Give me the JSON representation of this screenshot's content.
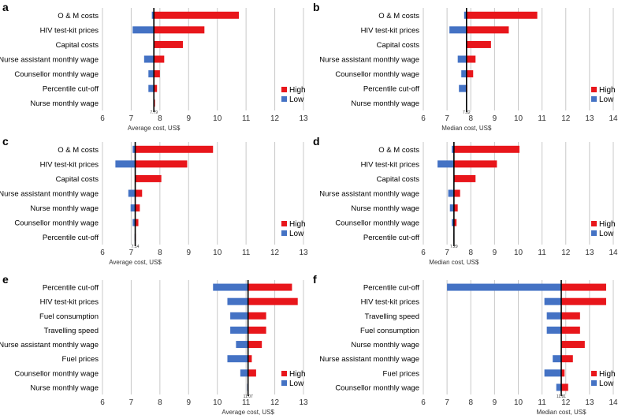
{
  "chart_data": [
    {
      "type": "bar",
      "subtype": "tornado",
      "panel": "a",
      "xlabel": "Average cost, US$",
      "xlim": [
        6,
        13
      ],
      "xticks": [
        6,
        7,
        8,
        9,
        10,
        11,
        12,
        13
      ],
      "base": 7.79,
      "base_label": "7.79",
      "legend": [
        "High",
        "Low"
      ],
      "legend_position": "right",
      "categories": [
        "O & M costs",
        "HIV test-kit prices",
        "Capital costs",
        "Nurse assistant monthly wage",
        "Counsellor monthly wage",
        "Percentile cut-off",
        "Nurse monthly wage"
      ],
      "series": [
        {
          "name": "Low",
          "values": [
            7.72,
            7.05,
            7.79,
            7.45,
            7.6,
            7.6,
            7.77
          ]
        },
        {
          "name": "High",
          "values": [
            10.75,
            9.55,
            8.8,
            8.15,
            8.0,
            7.9,
            7.83
          ]
        }
      ]
    },
    {
      "type": "bar",
      "subtype": "tornado",
      "panel": "b",
      "xlabel": "Median cost, US$",
      "xlim": [
        6,
        14
      ],
      "xticks": [
        6,
        7,
        8,
        9,
        10,
        11,
        12,
        13,
        14
      ],
      "base": 7.82,
      "base_label": "7.82",
      "legend": [
        "High",
        "Low"
      ],
      "legend_position": "right",
      "categories": [
        "O & M costs",
        "HIV test-kit prices",
        "Capital costs",
        "Nurse assistant monthly wage",
        "Counsellor monthly wage",
        "Percentile cut-off",
        "Nurse monthly wage"
      ],
      "series": [
        {
          "name": "Low",
          "values": [
            7.72,
            7.1,
            7.82,
            7.45,
            7.6,
            7.5,
            7.8
          ]
        },
        {
          "name": "High",
          "values": [
            10.8,
            9.6,
            8.85,
            8.2,
            8.1,
            7.85,
            7.84
          ]
        }
      ]
    },
    {
      "type": "bar",
      "subtype": "tornado",
      "panel": "c",
      "xlabel": "Average cost, US$",
      "xlim": [
        6,
        13
      ],
      "xticks": [
        6,
        7,
        8,
        9,
        10,
        11,
        12,
        13
      ],
      "base": 7.14,
      "base_label": "7.14",
      "legend": [
        "High",
        "Low"
      ],
      "legend_position": "right",
      "categories": [
        "O & M costs",
        "HIV test-kit prices",
        "Capital costs",
        "Nurse assistant monthly wage",
        "Nurse monthly wage",
        "Counsellor monthly wage",
        "Percentile cut-off"
      ],
      "series": [
        {
          "name": "Low",
          "values": [
            7.05,
            6.45,
            7.14,
            6.9,
            6.98,
            7.05,
            7.12
          ]
        },
        {
          "name": "High",
          "values": [
            9.85,
            8.95,
            8.05,
            7.38,
            7.3,
            7.25,
            7.16
          ]
        }
      ]
    },
    {
      "type": "bar",
      "subtype": "tornado",
      "panel": "d",
      "xlabel": "Median cost, US$",
      "xlim": [
        6,
        14
      ],
      "xticks": [
        6,
        7,
        8,
        9,
        10,
        11,
        12,
        13,
        14
      ],
      "base": 7.29,
      "base_label": "7.29",
      "legend": [
        "High",
        "Low"
      ],
      "legend_position": "right",
      "categories": [
        "O & M costs",
        "HIV test-kit prices",
        "Capital costs",
        "Nurse assistant monthly wage",
        "Nurse monthly wage",
        "Counsellor monthly wage",
        "Percentile cut-off"
      ],
      "series": [
        {
          "name": "Low",
          "values": [
            7.2,
            6.6,
            7.29,
            7.05,
            7.12,
            7.2,
            7.27
          ]
        },
        {
          "name": "High",
          "values": [
            10.05,
            9.1,
            8.2,
            7.55,
            7.45,
            7.4,
            7.31
          ]
        }
      ]
    },
    {
      "type": "bar",
      "subtype": "tornado",
      "panel": "e",
      "xlabel": "Average cost, US$",
      "xlim": [
        6,
        13
      ],
      "xticks": [
        6,
        7,
        8,
        9,
        10,
        11,
        12,
        13
      ],
      "base": 11.07,
      "base_label": "11.07",
      "legend": [
        "High",
        "Low"
      ],
      "legend_position": "right",
      "categories": [
        "Percentile cut-off",
        "HIV test-kit prices",
        "Fuel consumption",
        "Travelling speed",
        "Nurse assistant monthly wage",
        "Fuel prices",
        "Counsellor monthly wage",
        "Nurse monthly wage"
      ],
      "series": [
        {
          "name": "Low",
          "values": [
            9.85,
            10.35,
            10.45,
            10.45,
            10.65,
            10.35,
            10.8,
            11.04
          ]
        },
        {
          "name": "High",
          "values": [
            12.6,
            12.8,
            11.7,
            11.7,
            11.55,
            11.2,
            11.35,
            11.09
          ]
        }
      ]
    },
    {
      "type": "bar",
      "subtype": "tornado",
      "panel": "f",
      "xlabel": "Median cost, US$",
      "xlim": [
        6,
        14
      ],
      "xticks": [
        6,
        7,
        8,
        9,
        10,
        11,
        12,
        13,
        14
      ],
      "base": 11.81,
      "base_label": "11.81",
      "legend": [
        "High",
        "Low"
      ],
      "legend_position": "right",
      "categories": [
        "Percentile cut-off",
        "HIV test-kit prices",
        "Travelling speed",
        "Fuel consumption",
        "Nurse monthly wage",
        "Nurse assistant monthly wage",
        "Fuel prices",
        "Counsellor monthly wage"
      ],
      "series": [
        {
          "name": "Low",
          "values": [
            7.0,
            11.1,
            11.2,
            11.2,
            11.81,
            11.45,
            11.1,
            11.6
          ]
        },
        {
          "name": "High",
          "values": [
            13.7,
            13.7,
            12.6,
            12.6,
            12.8,
            12.3,
            11.95,
            12.1
          ]
        }
      ]
    }
  ],
  "colors": {
    "high": "#e8161b",
    "low": "#4472c4",
    "grid": "#c8c8c8",
    "base_line": "#000000",
    "text": "#000000"
  }
}
